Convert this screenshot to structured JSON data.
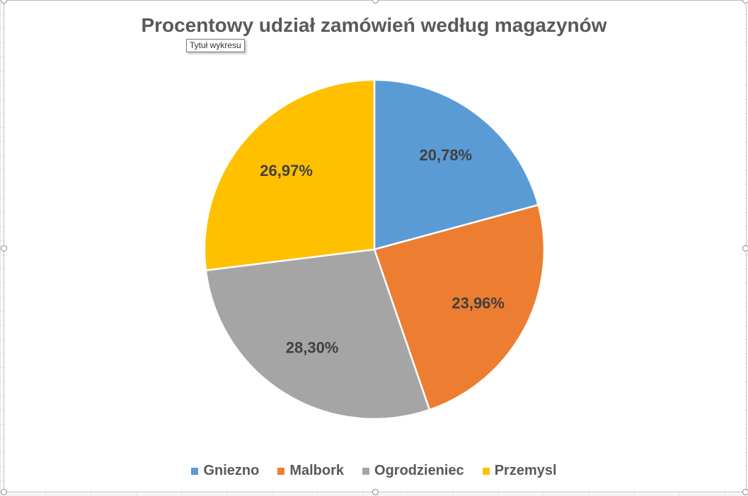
{
  "chart_data": {
    "type": "pie",
    "title": "Procentowy udział zamówień według magazynów",
    "categories": [
      "Gniezno",
      "Malbork",
      "Ogrodzieniec",
      "Przemysl"
    ],
    "values": [
      20.78,
      23.96,
      28.3,
      26.97
    ],
    "data_labels": [
      "20,78%",
      "23,96%",
      "28,30%",
      "26,97%"
    ],
    "colors": [
      "#5B9BD5",
      "#ED7D31",
      "#A5A5A5",
      "#FFC000"
    ],
    "legend_position": "bottom"
  },
  "ui": {
    "tooltip": "Tytuł wykresu"
  }
}
